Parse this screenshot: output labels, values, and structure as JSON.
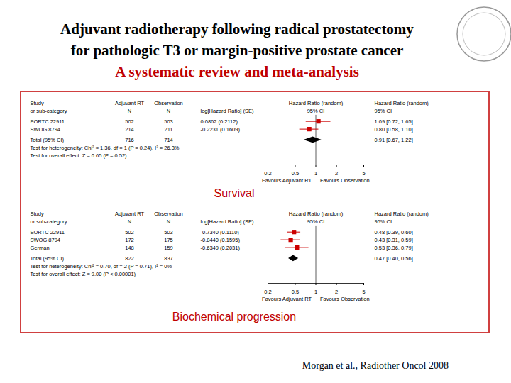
{
  "page": {
    "title_lines": [
      "Adjuvant radiotherapy following radical prostatectomy",
      "for pathologic T3 or margin-positive prostate cancer"
    ],
    "subtitle": "A systematic review and meta-analysis",
    "citation": "Morgan et al., Radiother Oncol 2008"
  },
  "chart_data": [
    {
      "type": "forest",
      "title": "Survival",
      "log": "x",
      "color": "#cc0000",
      "header": [
        [
          "Study",
          "Adjuvant RT",
          "Observation",
          null,
          "Hazard Ratio (random)",
          "Hazard Ratio (random)"
        ],
        [
          "or sub-category",
          "N",
          "N",
          "log[Hazard Ratio] (SE)",
          "95% CI",
          "95% CI"
        ]
      ],
      "studies": [
        {
          "name": "EORTC 22911",
          "n_rt": 502,
          "n_obs": 503,
          "log_hr_se": "0.0862 (0.2112)",
          "hr": 1.09,
          "ci": [
            0.72,
            1.65
          ],
          "hr_label": "1.09 [0.72, 1.65]"
        },
        {
          "name": "SWOG 8794",
          "n_rt": 214,
          "n_obs": 211,
          "log_hr_se": "-0.2231 (0.1609)",
          "hr": 0.8,
          "ci": [
            0.58,
            1.1
          ],
          "hr_label": "0.80 [0.58, 1.10]"
        }
      ],
      "total": {
        "name": "Total (95% CI)",
        "n_rt": 716,
        "n_obs": 714,
        "hr": 0.91,
        "ci": [
          0.67,
          1.22
        ],
        "hr_label": "0.91 [0.67, 1.22]"
      },
      "tests": [
        "Test for heterogeneity: Chi² = 1.36, df = 1 (P = 0.24), I² = 26.3%",
        "Test for overall effect: Z = 0.65 (P = 0.52)"
      ],
      "reference": 1,
      "xlim": [
        0.2,
        5
      ],
      "xticks": [
        0.2,
        0.5,
        1,
        2,
        5
      ],
      "x_labels": [
        "Favours Adjuvant RT",
        "Favours Observation"
      ]
    },
    {
      "type": "forest",
      "title": "Biochemical progression",
      "log": "x",
      "color": "#cc0000",
      "header": [
        [
          "Study",
          "Adjuvant RT",
          "Observation",
          null,
          "Hazard Ratio (random)",
          "Hazard Ratio (random)"
        ],
        [
          "or sub-category",
          "N",
          "N",
          "log[Hazard Ratio] (SE)",
          "95% CI",
          "95% CI"
        ]
      ],
      "studies": [
        {
          "name": "EORTC 22911",
          "n_rt": 502,
          "n_obs": 503,
          "log_hr_se": "-0.7340 (0.1110)",
          "hr": 0.48,
          "ci": [
            0.39,
            0.6
          ],
          "hr_label": "0.48 [0.39, 0.60]"
        },
        {
          "name": "SWOG 8794",
          "n_rt": 172,
          "n_obs": 175,
          "log_hr_se": "-0.8440 (0.1595)",
          "hr": 0.43,
          "ci": [
            0.31,
            0.59
          ],
          "hr_label": "0.43 [0.31, 0.59]"
        },
        {
          "name": "German",
          "n_rt": 148,
          "n_obs": 159,
          "log_hr_se": "-0.6349 (0.2031)",
          "hr": 0.53,
          "ci": [
            0.36,
            0.79
          ],
          "hr_label": "0.53 [0.36, 0.79]"
        }
      ],
      "total": {
        "name": "Total (95% CI)",
        "n_rt": 822,
        "n_obs": 837,
        "hr": 0.47,
        "ci": [
          0.4,
          0.56
        ],
        "hr_label": "0.47 [0.40, 0.56]"
      },
      "tests": [
        "Test for heterogeneity: Chi² = 0.70, df = 2 (P = 0.71), I² = 0%",
        "Test for overall effect: Z = 9.00 (P < 0.00001)"
      ],
      "reference": 1,
      "xlim": [
        0.2,
        5
      ],
      "xticks": [
        0.2,
        0.5,
        1,
        2,
        5
      ],
      "x_labels": [
        "Favours Adjuvant RT",
        "Favours Observation"
      ]
    }
  ]
}
